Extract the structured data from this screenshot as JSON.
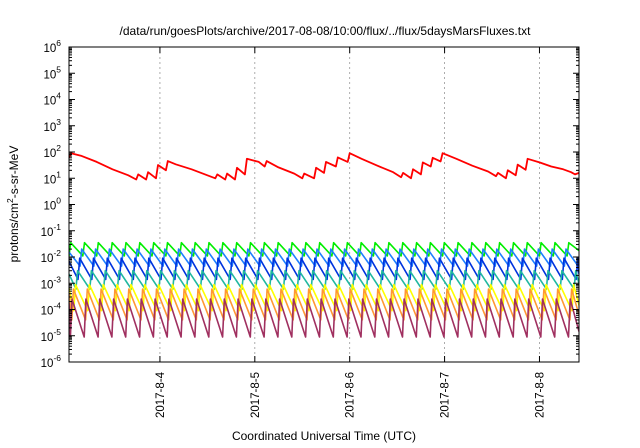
{
  "chart_data": {
    "type": "line",
    "title": "/data/run/goesPlots/archive/2017-08-08/10:00/flux/../flux/5daysMarsFluxes.txt",
    "xlabel": "Coordinated Universal Time (UTC)",
    "ylabel": {
      "base": "protons/cm",
      "sup": "2",
      "rest": "-s-sr-MeV"
    },
    "xlim": [
      "2017-08-03 01:00",
      "2017-08-08 10:00"
    ],
    "ylim": [
      1e-06,
      1000000.0
    ],
    "yscale": "log",
    "grid": true,
    "xticks": [
      {
        "date": "2017-08-04 00:00",
        "label": "2017-8-4"
      },
      {
        "date": "2017-08-05 00:00",
        "label": "2017-8-5"
      },
      {
        "date": "2017-08-06 00:00",
        "label": "2017-8-6"
      },
      {
        "date": "2017-08-07 00:00",
        "label": "2017-8-7"
      },
      {
        "date": "2017-08-08 00:00",
        "label": "2017-8-8"
      }
    ],
    "yticks": [
      {
        "value": 1e-06,
        "base": "10",
        "exp": "-6"
      },
      {
        "value": 1e-05,
        "base": "10",
        "exp": "-5"
      },
      {
        "value": 0.0001,
        "base": "10",
        "exp": "-4"
      },
      {
        "value": 0.001,
        "base": "10",
        "exp": "-3"
      },
      {
        "value": 0.01,
        "base": "10",
        "exp": "-2"
      },
      {
        "value": 0.1,
        "base": "10",
        "exp": "-1"
      },
      {
        "value": 1.0,
        "base": "10",
        "exp": "0"
      },
      {
        "value": 10.0,
        "base": "10",
        "exp": "1"
      },
      {
        "value": 100.0,
        "base": "10",
        "exp": "2"
      },
      {
        "value": 1000.0,
        "base": "10",
        "exp": "3"
      },
      {
        "value": 10000.0,
        "base": "10",
        "exp": "4"
      },
      {
        "value": 100000.0,
        "base": "10",
        "exp": "5"
      },
      {
        "value": 1000000.0,
        "base": "10",
        "exp": "6"
      }
    ],
    "series": [
      {
        "color": "#ff0000",
        "points": [
          [
            "2017-08-03 01:00",
            60
          ],
          [
            "2017-08-03 01:30",
            90
          ],
          [
            "2017-08-03 04:00",
            72
          ],
          [
            "2017-08-03 08:00",
            42
          ],
          [
            "2017-08-03 12:00",
            22
          ],
          [
            "2017-08-03 16:00",
            13
          ],
          [
            "2017-08-03 18:00",
            9
          ],
          [
            "2017-08-03 18:30",
            14
          ],
          [
            "2017-08-03 20:30",
            9
          ],
          [
            "2017-08-03 21:00",
            17
          ],
          [
            "2017-08-03 23:00",
            10
          ],
          [
            "2017-08-03 23:30",
            32
          ],
          [
            "2017-08-04 01:30",
            20
          ],
          [
            "2017-08-04 02:00",
            45
          ],
          [
            "2017-08-04 04:00",
            34
          ],
          [
            "2017-08-04 08:00",
            22
          ],
          [
            "2017-08-04 12:00",
            13
          ],
          [
            "2017-08-04 14:00",
            10
          ],
          [
            "2017-08-04 14:30",
            14
          ],
          [
            "2017-08-04 16:30",
            9
          ],
          [
            "2017-08-04 17:00",
            15
          ],
          [
            "2017-08-04 19:00",
            9
          ],
          [
            "2017-08-04 19:30",
            25
          ],
          [
            "2017-08-04 21:30",
            14
          ],
          [
            "2017-08-04 22:00",
            55
          ],
          [
            "2017-08-05 01:00",
            42
          ],
          [
            "2017-08-05 02:30",
            28
          ],
          [
            "2017-08-05 03:00",
            45
          ],
          [
            "2017-08-05 06:00",
            26
          ],
          [
            "2017-08-05 10:00",
            15
          ],
          [
            "2017-08-05 12:00",
            10
          ],
          [
            "2017-08-05 12:30",
            15
          ],
          [
            "2017-08-05 15:00",
            10
          ],
          [
            "2017-08-05 15:30",
            25
          ],
          [
            "2017-08-05 17:30",
            16
          ],
          [
            "2017-08-05 18:00",
            42
          ],
          [
            "2017-08-05 20:30",
            28
          ],
          [
            "2017-08-05 21:00",
            62
          ],
          [
            "2017-08-05 23:30",
            42
          ],
          [
            "2017-08-06 00:00",
            90
          ],
          [
            "2017-08-06 03:00",
            55
          ],
          [
            "2017-08-06 07:00",
            30
          ],
          [
            "2017-08-06 11:00",
            17
          ],
          [
            "2017-08-06 13:00",
            11
          ],
          [
            "2017-08-06 13:30",
            16
          ],
          [
            "2017-08-06 15:30",
            10
          ],
          [
            "2017-08-06 16:00",
            22
          ],
          [
            "2017-08-06 18:00",
            14
          ],
          [
            "2017-08-06 18:30",
            40
          ],
          [
            "2017-08-06 20:30",
            28
          ],
          [
            "2017-08-06 21:00",
            60
          ],
          [
            "2017-08-06 23:00",
            44
          ],
          [
            "2017-08-06 23:30",
            90
          ],
          [
            "2017-08-07 03:00",
            55
          ],
          [
            "2017-08-07 07:00",
            30
          ],
          [
            "2017-08-07 11:00",
            18
          ],
          [
            "2017-08-07 13:00",
            12
          ],
          [
            "2017-08-07 13:30",
            16
          ],
          [
            "2017-08-07 15:30",
            10
          ],
          [
            "2017-08-07 16:00",
            20
          ],
          [
            "2017-08-07 18:00",
            13
          ],
          [
            "2017-08-07 18:30",
            33
          ],
          [
            "2017-08-07 20:30",
            21
          ],
          [
            "2017-08-07 21:00",
            55
          ],
          [
            "2017-08-08 00:00",
            40
          ],
          [
            "2017-08-08 03:00",
            28
          ],
          [
            "2017-08-08 06:00",
            22
          ],
          [
            "2017-08-08 08:00",
            17
          ],
          [
            "2017-08-08 09:00",
            14
          ],
          [
            "2017-08-08 10:00",
            16
          ]
        ]
      },
      {
        "color": "#00ee00",
        "pattern": "sawtooth",
        "low": 0.011,
        "high": 0.035,
        "phase": 0.0
      },
      {
        "color": "#1f7fff",
        "pattern": "sawtooth",
        "low": 0.0045,
        "high": 0.02,
        "phase": 0.2
      },
      {
        "color": "#0033dd",
        "pattern": "sawtooth",
        "low": 0.0014,
        "high": 0.009,
        "phase": 0.35
      },
      {
        "color": "#20b8a0",
        "pattern": "sawtooth",
        "low": 0.0006,
        "high": 0.003,
        "phase": 0.5
      },
      {
        "color": "#ffff00",
        "pattern": "sawtooth",
        "low": 9e-05,
        "high": 0.0009,
        "phase": 0.65
      },
      {
        "color": "#ff9933",
        "pattern": "sawtooth",
        "low": 4e-05,
        "high": 0.0006,
        "phase": 0.8
      },
      {
        "color": "#a03060",
        "pattern": "sawtooth",
        "low": 9e-06,
        "high": 0.00025,
        "phase": 0.9
      }
    ],
    "sawtooth_period_hours": 3.5
  }
}
